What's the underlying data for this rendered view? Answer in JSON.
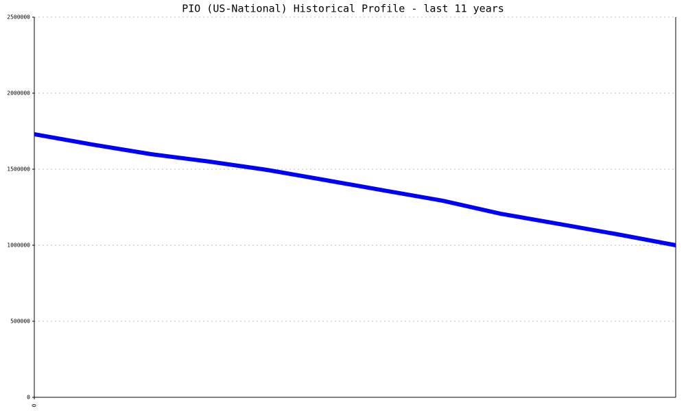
{
  "chart_data": {
    "type": "line",
    "title": "PIO (US-National) Historical Profile - last 11 years",
    "categories": [
      "0",
      null,
      null,
      null,
      null,
      null,
      null,
      null,
      null,
      null,
      null,
      null
    ],
    "series": [
      {
        "color": "#0000ff",
        "values": [
          1730000,
          1662000,
          1599000,
          1550000,
          1495000,
          1428000,
          1360000,
          1293000,
          1207000,
          1140000,
          1072000,
          1000000
        ]
      }
    ],
    "ylim": [
      0,
      2500000
    ],
    "yticks": [
      0,
      500000,
      1000000,
      1500000,
      2000000,
      2500000
    ],
    "grid": true
  }
}
